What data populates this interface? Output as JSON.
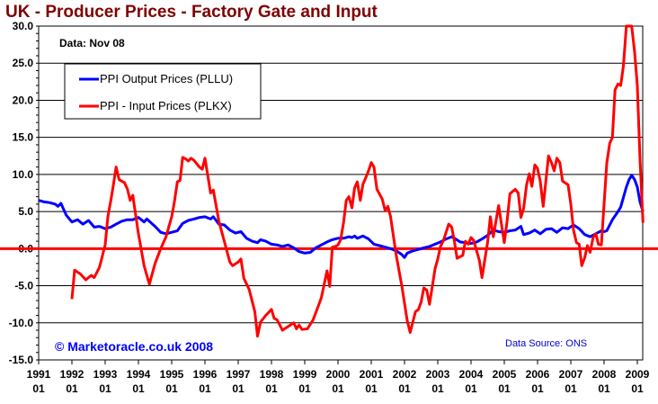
{
  "chart_data": {
    "type": "line",
    "title": "UK - Producer Prices - Factory Gate and Input",
    "annotation": "Data: Nov 08",
    "copyright": "© Marketoracle.co.uk 2008",
    "source": "Data Source: ONS",
    "xlabel": "",
    "ylabel": "",
    "ylim": [
      -15,
      30
    ],
    "xlim": [
      1991.0,
      2009.0
    ],
    "grid": true,
    "legend_position": "top-left",
    "y_ticks": [
      30,
      25,
      20,
      15,
      10,
      5,
      0,
      -5,
      -10,
      -15
    ],
    "y_tick_labels": [
      "30.0",
      "25.0",
      "20.0",
      "15.0",
      "10.0",
      "5.0",
      "0.0",
      "-5.0",
      "-10.0",
      "-15.0"
    ],
    "x_ticks": [
      1991,
      1992,
      1993,
      1994,
      1995,
      1996,
      1997,
      1998,
      1999,
      2000,
      2001,
      2002,
      2003,
      2004,
      2005,
      2006,
      2007,
      2008,
      2009
    ],
    "x_tick_labels": [
      [
        "1991",
        "01"
      ],
      [
        "1992",
        "01"
      ],
      [
        "1993",
        "01"
      ],
      [
        "1994",
        "01"
      ],
      [
        "1995",
        "01"
      ],
      [
        "1996",
        "01"
      ],
      [
        "1997",
        "01"
      ],
      [
        "1998",
        "01"
      ],
      [
        "1999",
        "01"
      ],
      [
        "2000",
        "01"
      ],
      [
        "2001",
        "01"
      ],
      [
        "2002",
        "01"
      ],
      [
        "2003",
        "01"
      ],
      [
        "2004",
        "01"
      ],
      [
        "2005",
        "01"
      ],
      [
        "2006",
        "01"
      ],
      [
        "2007",
        "01"
      ],
      [
        "2008",
        "01"
      ],
      [
        "2009",
        "01"
      ]
    ],
    "reference_line": {
      "value": 0,
      "color": "#ff0000"
    },
    "series": [
      {
        "name": "PPI Output Prices (PLLU)",
        "color": "#0000ff",
        "points": [
          [
            1991.0,
            6.5
          ],
          [
            1991.17,
            6.3
          ],
          [
            1991.33,
            6.2
          ],
          [
            1991.5,
            6.0
          ],
          [
            1991.58,
            5.7
          ],
          [
            1991.67,
            6.1
          ],
          [
            1991.83,
            4.5
          ],
          [
            1992.0,
            3.6
          ],
          [
            1992.17,
            3.9
          ],
          [
            1992.33,
            3.3
          ],
          [
            1992.5,
            3.8
          ],
          [
            1992.67,
            2.9
          ],
          [
            1992.83,
            3.0
          ],
          [
            1993.0,
            2.7
          ],
          [
            1993.17,
            2.9
          ],
          [
            1993.33,
            3.3
          ],
          [
            1993.5,
            3.7
          ],
          [
            1993.67,
            3.9
          ],
          [
            1993.83,
            3.9
          ],
          [
            1994.0,
            4.2
          ],
          [
            1994.17,
            3.6
          ],
          [
            1994.25,
            4.0
          ],
          [
            1994.5,
            3.0
          ],
          [
            1994.67,
            2.2
          ],
          [
            1994.83,
            2.0
          ],
          [
            1995.0,
            2.2
          ],
          [
            1995.17,
            2.4
          ],
          [
            1995.33,
            3.4
          ],
          [
            1995.5,
            3.8
          ],
          [
            1995.67,
            4.0
          ],
          [
            1995.83,
            4.2
          ],
          [
            1996.0,
            4.3
          ],
          [
            1996.17,
            4.0
          ],
          [
            1996.25,
            4.3
          ],
          [
            1996.42,
            3.3
          ],
          [
            1996.58,
            3.2
          ],
          [
            1996.75,
            2.5
          ],
          [
            1996.92,
            2.1
          ],
          [
            1997.08,
            2.3
          ],
          [
            1997.25,
            1.4
          ],
          [
            1997.42,
            1.0
          ],
          [
            1997.58,
            0.8
          ],
          [
            1997.67,
            1.2
          ],
          [
            1997.83,
            1.0
          ],
          [
            1998.0,
            0.6
          ],
          [
            1998.17,
            0.5
          ],
          [
            1998.33,
            0.3
          ],
          [
            1998.5,
            0.5
          ],
          [
            1998.67,
            0.1
          ],
          [
            1998.83,
            -0.4
          ],
          [
            1999.0,
            -0.6
          ],
          [
            1999.17,
            -0.5
          ],
          [
            1999.33,
            0.1
          ],
          [
            1999.5,
            0.5
          ],
          [
            1999.67,
            0.9
          ],
          [
            1999.83,
            1.2
          ],
          [
            2000.0,
            1.4
          ],
          [
            2000.17,
            1.4
          ],
          [
            2000.33,
            1.6
          ],
          [
            2000.42,
            1.5
          ],
          [
            2000.5,
            1.7
          ],
          [
            2000.58,
            1.4
          ],
          [
            2000.75,
            1.7
          ],
          [
            2000.92,
            1.3
          ],
          [
            2001.08,
            0.6
          ],
          [
            2001.25,
            0.4
          ],
          [
            2001.42,
            0.2
          ],
          [
            2001.58,
            0.0
          ],
          [
            2001.75,
            -0.3
          ],
          [
            2001.92,
            -0.8
          ],
          [
            2002.0,
            -1.2
          ],
          [
            2002.08,
            -0.6
          ],
          [
            2002.25,
            -0.3
          ],
          [
            2002.42,
            -0.1
          ],
          [
            2002.58,
            0.1
          ],
          [
            2002.75,
            0.3
          ],
          [
            2002.92,
            0.6
          ],
          [
            2003.08,
            0.9
          ],
          [
            2003.25,
            1.3
          ],
          [
            2003.42,
            1.6
          ],
          [
            2003.5,
            1.4
          ],
          [
            2003.67,
            0.9
          ],
          [
            2003.83,
            0.8
          ],
          [
            2004.0,
            0.7
          ],
          [
            2004.17,
            0.9
          ],
          [
            2004.33,
            1.3
          ],
          [
            2004.5,
            1.8
          ],
          [
            2004.67,
            2.5
          ],
          [
            2004.83,
            2.3
          ],
          [
            2005.0,
            2.2
          ],
          [
            2005.17,
            2.4
          ],
          [
            2005.33,
            2.5
          ],
          [
            2005.5,
            3.0
          ],
          [
            2005.58,
            1.9
          ],
          [
            2005.75,
            2.1
          ],
          [
            2005.92,
            2.5
          ],
          [
            2006.08,
            2.0
          ],
          [
            2006.25,
            2.6
          ],
          [
            2006.42,
            2.7
          ],
          [
            2006.58,
            2.2
          ],
          [
            2006.75,
            2.8
          ],
          [
            2006.92,
            2.7
          ],
          [
            2007.08,
            3.2
          ],
          [
            2007.25,
            2.7
          ],
          [
            2007.42,
            1.9
          ],
          [
            2007.58,
            1.6
          ],
          [
            2007.75,
            2.0
          ],
          [
            2007.92,
            2.4
          ],
          [
            2008.0,
            2.3
          ],
          [
            2008.08,
            2.4
          ],
          [
            2008.25,
            3.9
          ],
          [
            2008.42,
            5.0
          ],
          [
            2008.5,
            5.6
          ],
          [
            2008.67,
            8.3
          ],
          [
            2008.75,
            9.3
          ],
          [
            2008.83,
            9.9
          ],
          [
            2008.92,
            9.3
          ],
          [
            2009.0,
            8.3
          ],
          [
            2009.08,
            6.3
          ],
          [
            2009.17,
            5.0
          ]
        ]
      },
      {
        "name": "PPI - Input Prices (PLKX)",
        "color": "#ff0000",
        "points": [
          [
            1992.0,
            -6.8
          ],
          [
            1992.08,
            -2.9
          ],
          [
            1992.25,
            -3.4
          ],
          [
            1992.42,
            -4.2
          ],
          [
            1992.58,
            -3.6
          ],
          [
            1992.67,
            -3.9
          ],
          [
            1992.83,
            -2.5
          ],
          [
            1993.0,
            0.5
          ],
          [
            1993.08,
            4.3
          ],
          [
            1993.17,
            6.5
          ],
          [
            1993.25,
            8.7
          ],
          [
            1993.33,
            11.0
          ],
          [
            1993.42,
            9.3
          ],
          [
            1993.58,
            8.9
          ],
          [
            1993.67,
            8.0
          ],
          [
            1993.75,
            6.5
          ],
          [
            1993.83,
            7.2
          ],
          [
            1994.0,
            2.0
          ],
          [
            1994.17,
            -2.3
          ],
          [
            1994.33,
            -4.8
          ],
          [
            1994.5,
            -2.0
          ],
          [
            1994.67,
            0.0
          ],
          [
            1994.83,
            1.6
          ],
          [
            1995.0,
            4.3
          ],
          [
            1995.08,
            6.3
          ],
          [
            1995.17,
            9.0
          ],
          [
            1995.25,
            9.2
          ],
          [
            1995.33,
            12.3
          ],
          [
            1995.42,
            12.1
          ],
          [
            1995.5,
            11.8
          ],
          [
            1995.58,
            12.2
          ],
          [
            1995.67,
            11.9
          ],
          [
            1995.83,
            11.0
          ],
          [
            1995.92,
            10.7
          ],
          [
            1996.0,
            12.2
          ],
          [
            1996.17,
            7.5
          ],
          [
            1996.25,
            7.9
          ],
          [
            1996.42,
            3.7
          ],
          [
            1996.58,
            1.0
          ],
          [
            1996.75,
            -1.8
          ],
          [
            1996.83,
            -2.3
          ],
          [
            1997.0,
            -1.8
          ],
          [
            1997.08,
            -1.4
          ],
          [
            1997.17,
            -4.0
          ],
          [
            1997.33,
            -5.5
          ],
          [
            1997.5,
            -8.5
          ],
          [
            1997.58,
            -11.8
          ],
          [
            1997.67,
            -9.9
          ],
          [
            1997.83,
            -9.0
          ],
          [
            1998.0,
            -8.2
          ],
          [
            1998.08,
            -9.4
          ],
          [
            1998.17,
            -9.6
          ],
          [
            1998.33,
            -11.0
          ],
          [
            1998.5,
            -10.5
          ],
          [
            1998.67,
            -10.0
          ],
          [
            1998.75,
            -10.8
          ],
          [
            1998.83,
            -10.3
          ],
          [
            1998.92,
            -10.9
          ],
          [
            1999.08,
            -10.8
          ],
          [
            1999.25,
            -9.6
          ],
          [
            1999.42,
            -7.6
          ],
          [
            1999.5,
            -6.6
          ],
          [
            1999.67,
            -3.0
          ],
          [
            1999.75,
            -5.1
          ],
          [
            1999.83,
            0.2
          ],
          [
            1999.92,
            0.3
          ],
          [
            2000.0,
            0.5
          ],
          [
            2000.08,
            1.2
          ],
          [
            2000.17,
            3.6
          ],
          [
            2000.25,
            6.5
          ],
          [
            2000.33,
            7.0
          ],
          [
            2000.42,
            5.5
          ],
          [
            2000.5,
            8.2
          ],
          [
            2000.58,
            9.0
          ],
          [
            2000.67,
            6.5
          ],
          [
            2000.75,
            8.7
          ],
          [
            2000.83,
            9.5
          ],
          [
            2000.92,
            10.5
          ],
          [
            2001.0,
            11.6
          ],
          [
            2001.08,
            11.0
          ],
          [
            2001.17,
            8.0
          ],
          [
            2001.33,
            6.7
          ],
          [
            2001.42,
            5.1
          ],
          [
            2001.5,
            5.7
          ],
          [
            2001.58,
            4.3
          ],
          [
            2001.75,
            -0.9
          ],
          [
            2001.92,
            -5.0
          ],
          [
            2002.08,
            -9.7
          ],
          [
            2002.17,
            -11.3
          ],
          [
            2002.33,
            -8.5
          ],
          [
            2002.42,
            -8.2
          ],
          [
            2002.5,
            -7.2
          ],
          [
            2002.58,
            -5.3
          ],
          [
            2002.67,
            -5.6
          ],
          [
            2002.75,
            -7.5
          ],
          [
            2002.92,
            -2.7
          ],
          [
            2003.0,
            -1.4
          ],
          [
            2003.08,
            0.3
          ],
          [
            2003.17,
            1.1
          ],
          [
            2003.33,
            3.3
          ],
          [
            2003.42,
            2.9
          ],
          [
            2003.5,
            1.0
          ],
          [
            2003.58,
            -1.3
          ],
          [
            2003.75,
            -0.9
          ],
          [
            2003.83,
            1.0
          ],
          [
            2003.92,
            0.6
          ],
          [
            2004.0,
            1.5
          ],
          [
            2004.08,
            1.1
          ],
          [
            2004.25,
            -1.6
          ],
          [
            2004.33,
            -3.9
          ],
          [
            2004.5,
            0.9
          ],
          [
            2004.58,
            4.3
          ],
          [
            2004.67,
            1.6
          ],
          [
            2004.83,
            5.8
          ],
          [
            2005.0,
            0.8
          ],
          [
            2005.08,
            3.6
          ],
          [
            2005.17,
            7.4
          ],
          [
            2005.33,
            8.0
          ],
          [
            2005.42,
            7.5
          ],
          [
            2005.5,
            4.2
          ],
          [
            2005.58,
            5.4
          ],
          [
            2005.67,
            8.6
          ],
          [
            2005.75,
            10.1
          ],
          [
            2005.83,
            8.4
          ],
          [
            2005.92,
            11.3
          ],
          [
            2006.0,
            10.8
          ],
          [
            2006.08,
            9.1
          ],
          [
            2006.17,
            5.7
          ],
          [
            2006.33,
            12.5
          ],
          [
            2006.42,
            11.6
          ],
          [
            2006.5,
            10.5
          ],
          [
            2006.58,
            12.2
          ],
          [
            2006.67,
            11.6
          ],
          [
            2006.75,
            9.1
          ],
          [
            2006.92,
            8.6
          ],
          [
            2007.0,
            6.0
          ],
          [
            2007.08,
            2.5
          ],
          [
            2007.17,
            0.8
          ],
          [
            2007.25,
            0.6
          ],
          [
            2007.33,
            -2.3
          ],
          [
            2007.42,
            -1.2
          ],
          [
            2007.5,
            0.4
          ],
          [
            2007.58,
            -0.5
          ],
          [
            2007.67,
            1.5
          ],
          [
            2007.75,
            2.0
          ],
          [
            2007.83,
            0.6
          ],
          [
            2007.92,
            0.5
          ],
          [
            2008.0,
            6.0
          ],
          [
            2008.08,
            11.5
          ],
          [
            2008.17,
            14.2
          ],
          [
            2008.25,
            15.0
          ],
          [
            2008.33,
            21.4
          ],
          [
            2008.42,
            22.2
          ],
          [
            2008.5,
            22.0
          ],
          [
            2008.58,
            24.6
          ],
          [
            2008.67,
            30.0
          ],
          [
            2008.75,
            30.5
          ],
          [
            2008.83,
            30.0
          ],
          [
            2008.92,
            26.5
          ],
          [
            2009.0,
            22.0
          ],
          [
            2009.08,
            12.0
          ],
          [
            2009.17,
            3.5
          ]
        ]
      }
    ]
  }
}
